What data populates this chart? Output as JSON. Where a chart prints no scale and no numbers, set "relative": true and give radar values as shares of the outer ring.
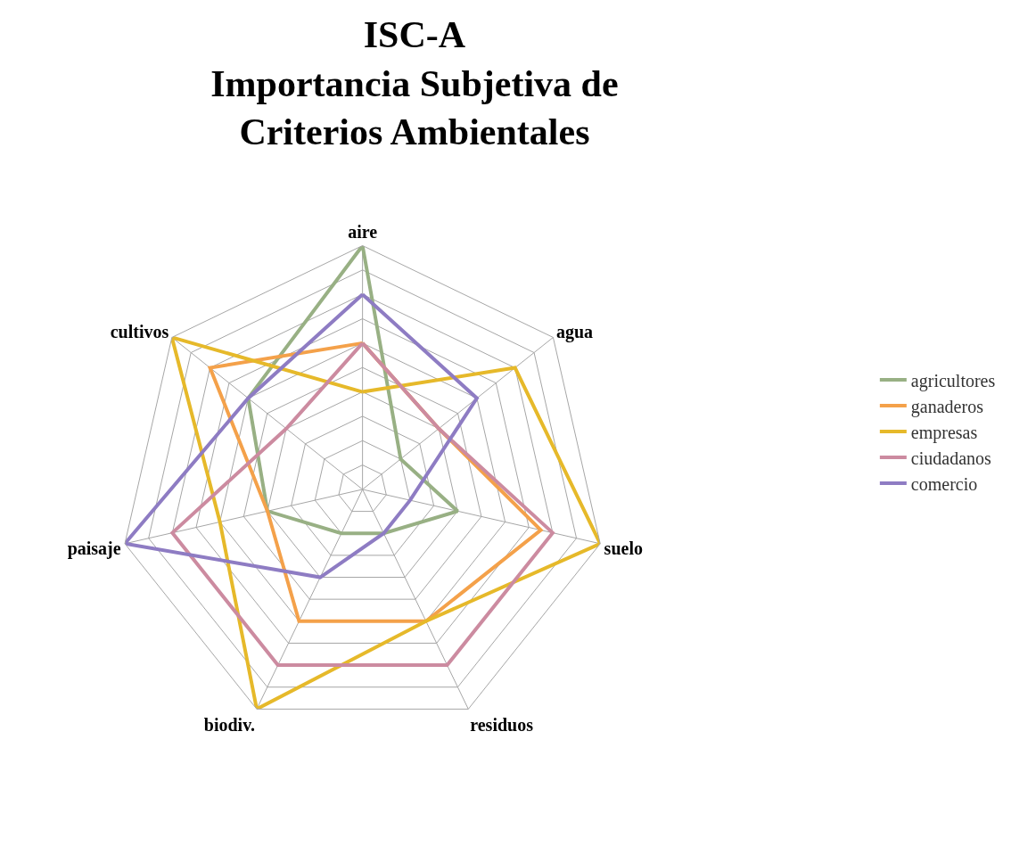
{
  "chart_data": {
    "type": "radar",
    "title": "ISC-A\nImportancia Subjetiva de\nCriterios Ambientales",
    "relative": true,
    "grid": true,
    "legend": "right",
    "marker": "none",
    "categories": [
      "aire",
      "agua",
      "suelo",
      "residuos",
      "biodiv.",
      "paisaje",
      "cultivos"
    ],
    "series": [
      {
        "name": "agricultores",
        "color": "#98b084",
        "values": [
          1.0,
          0.2,
          0.4,
          0.2,
          0.2,
          0.4,
          0.6
        ]
      },
      {
        "name": "ganaderos",
        "color": "#f4a14a",
        "values": [
          0.6,
          0.4,
          0.75,
          0.6,
          0.6,
          0.4,
          0.8
        ]
      },
      {
        "name": "empresas",
        "color": "#e6b92a",
        "values": [
          0.4,
          0.8,
          1.0,
          0.6,
          1.0,
          0.6,
          1.0
        ]
      },
      {
        "name": "ciudadanos",
        "color": "#cc8ba0",
        "values": [
          0.6,
          0.4,
          0.8,
          0.8,
          0.8,
          0.8,
          0.4
        ]
      },
      {
        "name": "comercio",
        "color": "#8e7cc3",
        "values": [
          0.8,
          0.6,
          0.2,
          0.2,
          0.4,
          1.0,
          0.6
        ]
      }
    ]
  }
}
